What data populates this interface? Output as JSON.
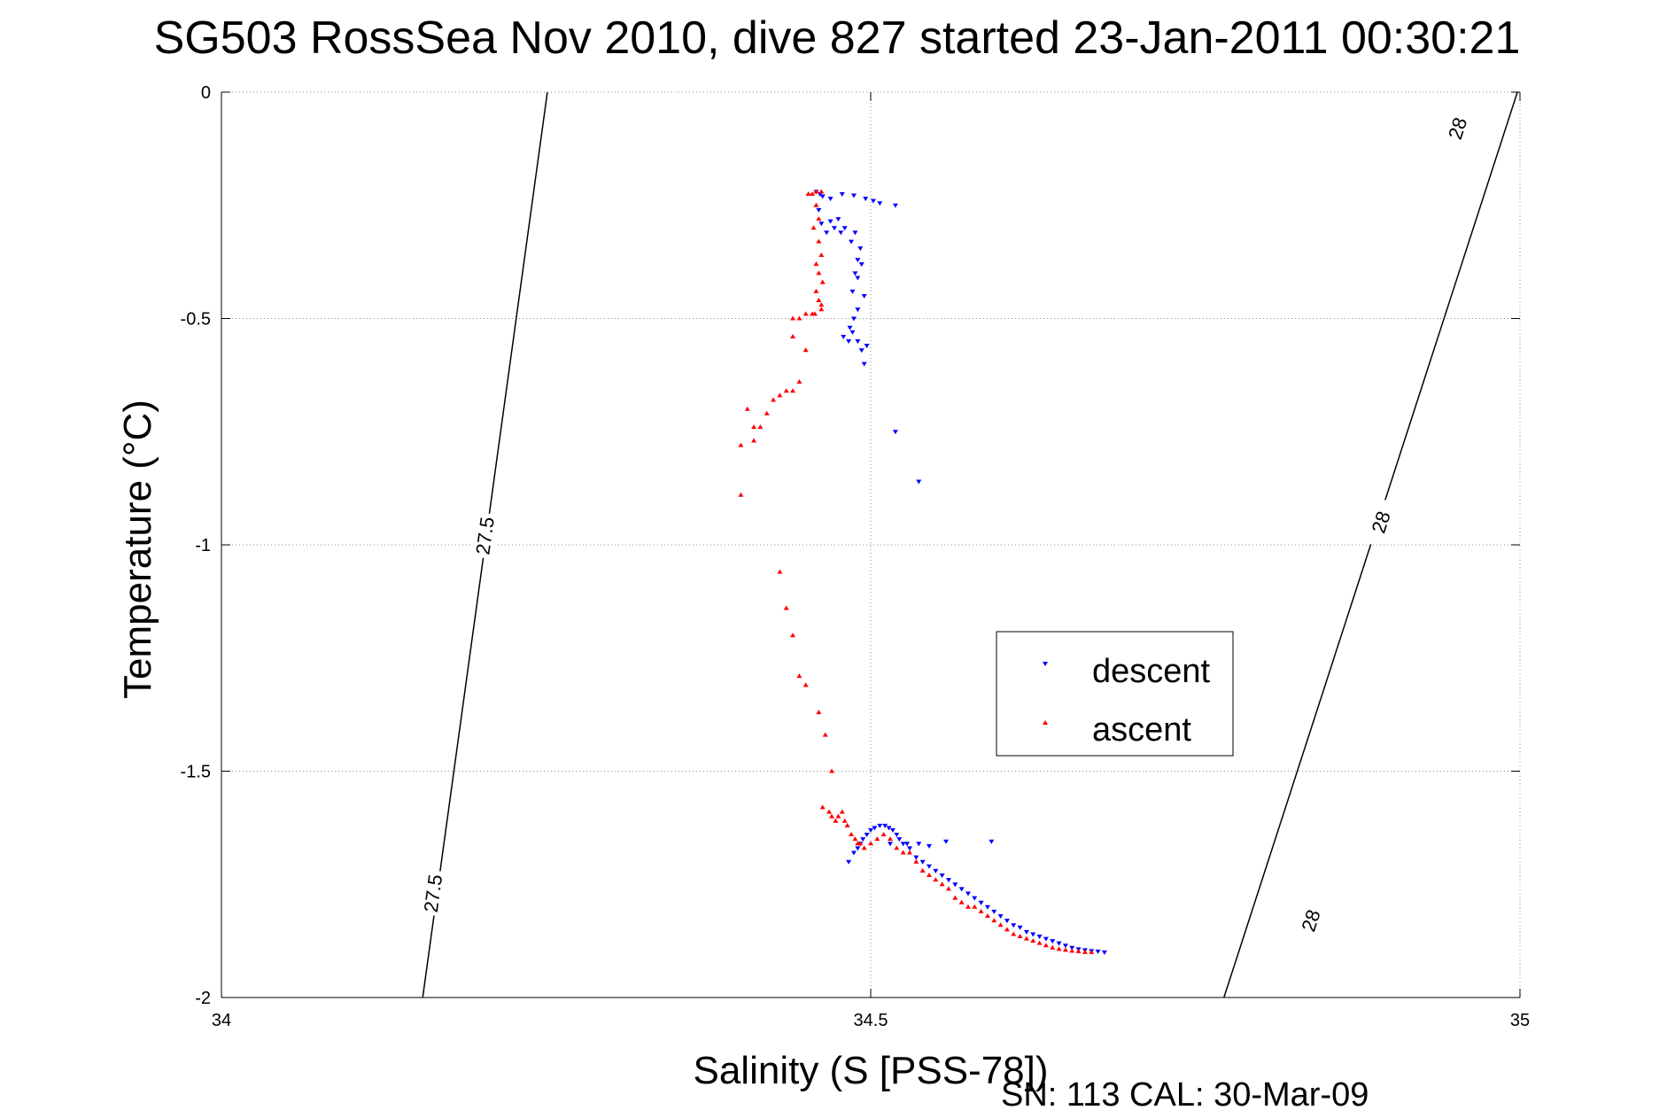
{
  "chart_data": {
    "type": "scatter",
    "title": "SG503 RossSea Nov 2010, dive 827 started 23-Jan-2011 00:30:21",
    "xlabel": "Salinity (S [PSS-78])",
    "ylabel": "Temperature (°C)",
    "xlim": [
      34,
      35
    ],
    "ylim": [
      -2,
      0
    ],
    "x_ticks": [
      34,
      34.5,
      35
    ],
    "y_ticks": [
      0,
      -0.5,
      -1,
      -1.5,
      -2
    ],
    "x_tick_labels": [
      "34",
      "34.5",
      "35"
    ],
    "y_tick_labels": [
      "0",
      "-0.5",
      "-1",
      "-1.5",
      "-2"
    ],
    "grid": true,
    "legend_placement": "lower-right",
    "footer": "SN: 113  CAL: 30-Mar-09",
    "colors": {
      "descent": "#0000ff",
      "ascent": "#ff0000",
      "contour": "#000000",
      "grid": "#8c8c8c"
    },
    "contours": [
      {
        "label": "27.5",
        "points": [
          [
            34.251,
            0
          ],
          [
            34.155,
            -2
          ]
        ],
        "label_positions": [
          [
            34.203,
            -0.98
          ],
          [
            34.163,
            -1.77
          ]
        ]
      },
      {
        "label": "28",
        "points": [
          [
            34.998,
            0
          ],
          [
            34.772,
            -2
          ]
        ],
        "label_positions": [
          [
            34.952,
            -0.08
          ],
          [
            34.893,
            -0.95
          ],
          [
            34.839,
            -1.83
          ]
        ]
      }
    ],
    "series": [
      {
        "name": "descent",
        "marker": "triangle-down",
        "x": [
          34.458,
          34.461,
          34.463,
          34.469,
          34.478,
          34.487,
          34.496,
          34.502,
          34.507,
          34.519,
          34.46,
          34.462,
          34.466,
          34.469,
          34.472,
          34.475,
          34.477,
          34.48,
          34.485,
          34.488,
          34.492,
          34.49,
          34.488,
          34.486,
          34.49,
          34.493,
          34.495,
          34.49,
          34.487,
          34.484,
          34.479,
          34.483,
          34.486,
          34.49,
          34.493,
          34.495,
          34.497,
          34.519,
          34.537,
          34.483,
          34.487,
          34.49,
          34.492,
          34.494,
          34.497,
          34.5,
          34.503,
          34.507,
          34.511,
          34.514,
          34.517,
          34.52,
          34.522,
          34.525,
          34.53,
          34.535,
          34.54,
          34.545,
          34.55,
          34.555,
          34.56,
          34.565,
          34.57,
          34.575,
          34.58,
          34.585,
          34.59,
          34.595,
          34.6,
          34.605,
          34.61,
          34.615,
          34.62,
          34.625,
          34.63,
          34.635,
          34.64,
          34.645,
          34.65,
          34.655,
          34.66,
          34.665,
          34.67,
          34.675,
          34.68,
          34.537,
          34.558,
          34.593,
          34.515,
          34.528,
          34.545
        ],
        "y": [
          -0.22,
          -0.225,
          -0.23,
          -0.235,
          -0.225,
          -0.228,
          -0.235,
          -0.24,
          -0.245,
          -0.25,
          -0.26,
          -0.29,
          -0.31,
          -0.285,
          -0.3,
          -0.28,
          -0.31,
          -0.3,
          -0.33,
          -0.31,
          -0.345,
          -0.37,
          -0.4,
          -0.44,
          -0.41,
          -0.38,
          -0.45,
          -0.48,
          -0.5,
          -0.52,
          -0.54,
          -0.55,
          -0.53,
          -0.55,
          -0.57,
          -0.6,
          -0.56,
          -0.75,
          -0.86,
          -1.7,
          -1.68,
          -1.67,
          -1.66,
          -1.65,
          -1.64,
          -1.63,
          -1.625,
          -1.62,
          -1.62,
          -1.625,
          -1.63,
          -1.64,
          -1.65,
          -1.66,
          -1.67,
          -1.69,
          -1.7,
          -1.71,
          -1.72,
          -1.73,
          -1.74,
          -1.75,
          -1.76,
          -1.77,
          -1.78,
          -1.79,
          -1.8,
          -1.81,
          -1.82,
          -1.83,
          -1.84,
          -1.845,
          -1.855,
          -1.86,
          -1.865,
          -1.87,
          -1.875,
          -1.88,
          -1.885,
          -1.89,
          -1.893,
          -1.895,
          -1.897,
          -1.898,
          -1.9,
          -1.66,
          -1.655,
          -1.655,
          -1.66,
          -1.66,
          -1.665
        ]
      },
      {
        "name": "ascent",
        "marker": "triangle-up",
        "x": [
          34.462,
          34.458,
          34.455,
          34.452,
          34.458,
          34.46,
          34.456,
          34.46,
          34.462,
          34.458,
          34.46,
          34.463,
          34.458,
          34.46,
          34.462,
          34.462,
          34.457,
          34.455,
          34.45,
          34.445,
          34.44,
          34.44,
          34.45,
          34.445,
          34.44,
          34.435,
          34.43,
          34.425,
          34.42,
          34.415,
          34.41,
          34.41,
          34.405,
          34.4,
          34.4,
          34.43,
          34.435,
          34.44,
          34.445,
          34.45,
          34.46,
          34.465,
          34.47,
          34.463,
          34.468,
          34.47,
          34.473,
          34.475,
          34.478,
          34.48,
          34.482,
          34.485,
          34.488,
          34.49,
          34.492,
          34.495,
          34.5,
          34.505,
          34.51,
          34.515,
          34.52,
          34.525,
          34.53,
          34.535,
          34.54,
          34.545,
          34.55,
          34.555,
          34.56,
          34.565,
          34.57,
          34.575,
          34.58,
          34.585,
          34.59,
          34.595,
          34.6,
          34.605,
          34.61,
          34.615,
          34.62,
          34.625,
          34.63,
          34.635,
          34.64,
          34.645,
          34.65,
          34.655,
          34.66,
          34.665,
          34.67
        ],
        "y": [
          -0.22,
          -0.22,
          -0.225,
          -0.225,
          -0.25,
          -0.28,
          -0.3,
          -0.33,
          -0.36,
          -0.38,
          -0.4,
          -0.42,
          -0.44,
          -0.46,
          -0.47,
          -0.48,
          -0.49,
          -0.49,
          -0.49,
          -0.5,
          -0.5,
          -0.54,
          -0.57,
          -0.64,
          -0.66,
          -0.66,
          -0.67,
          -0.68,
          -0.71,
          -0.74,
          -0.74,
          -0.77,
          -0.7,
          -0.78,
          -0.89,
          -1.06,
          -1.14,
          -1.2,
          -1.29,
          -1.31,
          -1.37,
          -1.42,
          -1.5,
          -1.58,
          -1.59,
          -1.6,
          -1.61,
          -1.6,
          -1.59,
          -1.61,
          -1.62,
          -1.64,
          -1.65,
          -1.66,
          -1.66,
          -1.67,
          -1.66,
          -1.65,
          -1.64,
          -1.65,
          -1.67,
          -1.68,
          -1.68,
          -1.7,
          -1.72,
          -1.73,
          -1.74,
          -1.75,
          -1.76,
          -1.78,
          -1.79,
          -1.8,
          -1.8,
          -1.81,
          -1.82,
          -1.83,
          -1.84,
          -1.85,
          -1.86,
          -1.865,
          -1.87,
          -1.875,
          -1.88,
          -1.885,
          -1.89,
          -1.893,
          -1.895,
          -1.897,
          -1.898,
          -1.9,
          -1.9
        ]
      }
    ]
  }
}
